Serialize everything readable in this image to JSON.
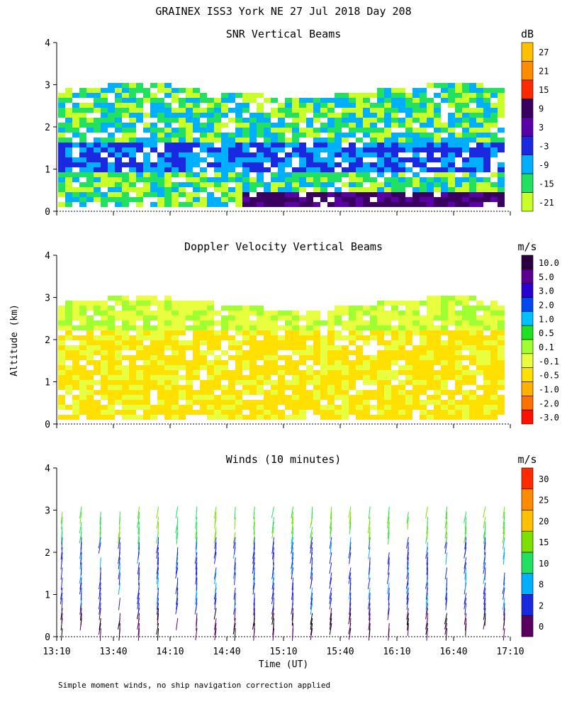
{
  "title": "GRAINEX ISS3 York NE  27 Jul 2018 Day 208",
  "footnote": "Simple moment winds, no ship navigation correction applied",
  "shared_axes": {
    "ylabel": "Altitude (km)",
    "xlabel": "Time (UT)",
    "y_ticks": [
      "0",
      "1",
      "2",
      "3",
      "4"
    ],
    "x_ticks": [
      "13:10",
      "13:40",
      "14:10",
      "14:40",
      "15:10",
      "15:40",
      "16:10",
      "16:40",
      "17:10"
    ]
  },
  "chart_data": [
    {
      "type": "heatmap",
      "title": "SNR Vertical Beams",
      "x_range": [
        "13:10",
        "17:10"
      ],
      "ylim": [
        0,
        4
      ],
      "colorbar": {
        "unit": "dB",
        "labels": [
          "27",
          "21",
          "15",
          "9",
          "3",
          "-3",
          "-9",
          "-15",
          "-21"
        ],
        "colors": [
          "#ffc000",
          "#ff8c00",
          "#ff2a00",
          "#3a0060",
          "#5a00a8",
          "#1a28e0",
          "#00b0ff",
          "#22e060",
          "#c8ff28"
        ]
      }
    },
    {
      "type": "heatmap",
      "title": "Doppler Velocity Vertical Beams",
      "x_range": [
        "13:10",
        "17:10"
      ],
      "ylim": [
        0,
        4
      ],
      "colorbar": {
        "unit": "m/s",
        "labels": [
          "10.0",
          "5.0",
          "3.0",
          "2.0",
          "1.0",
          "0.5",
          "0.1",
          "-0.1",
          "-0.5",
          "-1.0",
          "-2.0",
          "-3.0"
        ],
        "colors": [
          "#2a0040",
          "#5a0090",
          "#2a00d0",
          "#0048f0",
          "#00c0ff",
          "#20e020",
          "#a0ff30",
          "#e8ff40",
          "#ffe000",
          "#ffb000",
          "#ff7000",
          "#ff1000"
        ]
      }
    },
    {
      "type": "scatter",
      "title": "Winds (10 minutes)",
      "x_range": [
        "13:10",
        "17:10"
      ],
      "ylim": [
        0,
        4
      ],
      "colorbar": {
        "unit": "m/s",
        "labels": [
          "30",
          "25",
          "20",
          "15",
          "10",
          "8",
          "2",
          "0"
        ],
        "colors": [
          "#ff2a00",
          "#ff8c00",
          "#ffc000",
          "#7ce000",
          "#22e060",
          "#00b0ff",
          "#1a28e0",
          "#5a0060",
          "#000000"
        ]
      }
    }
  ]
}
